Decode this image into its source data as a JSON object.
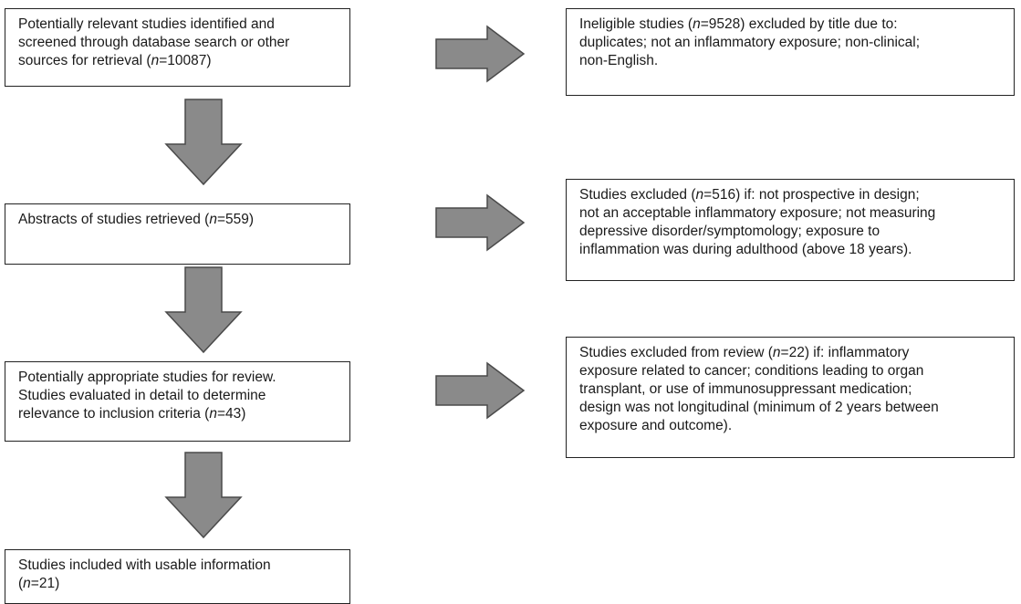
{
  "flowchart": {
    "left_boxes": [
      {
        "lines": [
          {
            "pre": "Potentially relevant studies identified and"
          },
          {
            "pre": "screened through database search or other"
          },
          {
            "pre": "sources for retrieval (",
            "it": "n",
            "post": "=10087)"
          }
        ]
      },
      {
        "lines": [
          {
            "pre": "Abstracts of studies retrieved (",
            "it": "n",
            "post": "=559)"
          }
        ]
      },
      {
        "lines": [
          {
            "pre": "Potentially appropriate studies for review."
          },
          {
            "pre": "Studies evaluated in detail to determine"
          },
          {
            "pre": "relevance to inclusion criteria (",
            "it": "n",
            "post": "=43)"
          }
        ]
      },
      {
        "lines": [
          {
            "pre": "Studies included with usable information"
          },
          {
            "pre": "(",
            "it": "n",
            "post": "=21)"
          }
        ]
      }
    ],
    "right_boxes": [
      {
        "lines": [
          {
            "pre": "Ineligible studies (",
            "it": "n",
            "post": "=9528) excluded by title due to:"
          },
          {
            "pre": "duplicates; not an inflammatory exposure; non-clinical;"
          },
          {
            "pre": "non-English."
          }
        ]
      },
      {
        "lines": [
          {
            "pre": "Studies excluded (",
            "it": "n",
            "post": "=516) if: not prospective in design;"
          },
          {
            "pre": "not an acceptable inflammatory exposure; not measuring"
          },
          {
            "pre": "depressive disorder/symptomology; exposure to"
          },
          {
            "pre": "inflammation was during adulthood (above 18 years)."
          }
        ]
      },
      {
        "lines": [
          {
            "pre": "Studies excluded from review (",
            "it": "n",
            "post": "=22) if: inflammatory"
          },
          {
            "pre": "exposure related to cancer; conditions leading to organ"
          },
          {
            "pre": "transplant, or use of immunosuppressant medication;"
          },
          {
            "pre": "design was not longitudinal (minimum of 2 years between"
          },
          {
            "pre": "exposure and outcome)."
          }
        ]
      }
    ],
    "colors": {
      "arrow_fill": "#8a8a8a",
      "arrow_stroke": "#4a4a4a",
      "box_border": "#222222"
    }
  }
}
